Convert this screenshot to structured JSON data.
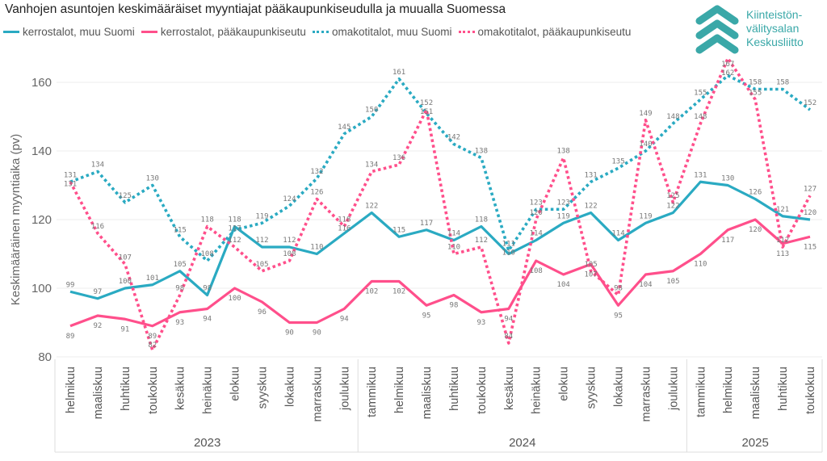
{
  "chart_data": {
    "type": "line",
    "title": "Vanhojen asuntojen keskimääräiset myyntiajat pääkaupunkiseudulla ja muualla Suomessa",
    "ylabel": "Keskimääräinen myyntiaika (pv)",
    "xlabel": "",
    "ylim": [
      80,
      167
    ],
    "yticks": [
      80,
      100,
      120,
      140,
      160
    ],
    "grid": true,
    "legend_position": "top-left",
    "categories": [
      "helmikuu",
      "maaliskuu",
      "huhtikuu",
      "toukokuu",
      "kesäkuu",
      "heinäkuu",
      "elokuu",
      "syyskuu",
      "lokakuu",
      "marraskuu",
      "joulukuu",
      "tammikuu",
      "helmikuu",
      "maaliskuu",
      "huhtikuu",
      "toukokuu",
      "kesäkuu",
      "heinäkuu",
      "elokuu",
      "syyskuu",
      "lokakuu",
      "marraskuu",
      "joulukuu",
      "tammikuu",
      "helmikuu",
      "maaliskuu",
      "huhtikuu",
      "toukokuu"
    ],
    "years": [
      {
        "label": "2023",
        "months": 11
      },
      {
        "label": "2024",
        "months": 12
      },
      {
        "label": "2025",
        "months": 5
      }
    ],
    "series": [
      {
        "name": "kerrostalot, muu Suomi",
        "color": "#2aaac2",
        "style": "solid",
        "values": [
          99,
          97,
          100,
          101,
          105,
          98,
          118,
          112,
          112,
          110,
          116,
          122,
          115,
          117,
          114,
          118,
          110,
          114,
          119,
          122,
          114,
          119,
          122,
          131,
          130,
          126,
          121,
          120
        ]
      },
      {
        "name": "kerrostalot, pääkaupunkiseutu",
        "color": "#ff4f8b",
        "style": "solid",
        "values": [
          89,
          92,
          91,
          89,
          93,
          94,
          100,
          96,
          90,
          90,
          94,
          102,
          102,
          95,
          98,
          93,
          94,
          108,
          104,
          107,
          95,
          104,
          105,
          110,
          117,
          120,
          113,
          115
        ]
      },
      {
        "name": "omakotitalot, muu Suomi",
        "color": "#2aaac2",
        "style": "dotted",
        "values": [
          131,
          134,
          125,
          130,
          115,
          108,
          117,
          119,
          124,
          132,
          145,
          150,
          161,
          151,
          142,
          138,
          111,
          123,
          123,
          131,
          135,
          140,
          148,
          155,
          162,
          158,
          158,
          152
        ]
      },
      {
        "name": "omakotitalot, pääkaupunkiseutu",
        "color": "#ff4f8b",
        "style": "dotted",
        "values": [
          131,
          116,
          107,
          82,
          98,
          118,
          112,
          105,
          108,
          126,
          118,
          134,
          136,
          152,
          110,
          112,
          84,
          120,
          138,
          105,
          98,
          149,
          125,
          148,
          167,
          155,
          112,
          127
        ]
      }
    ]
  },
  "logo": {
    "text_lines": [
      "Kiinteistön-",
      "välitysalan",
      "Keskusliitto"
    ],
    "color": "#3aa8a8"
  }
}
